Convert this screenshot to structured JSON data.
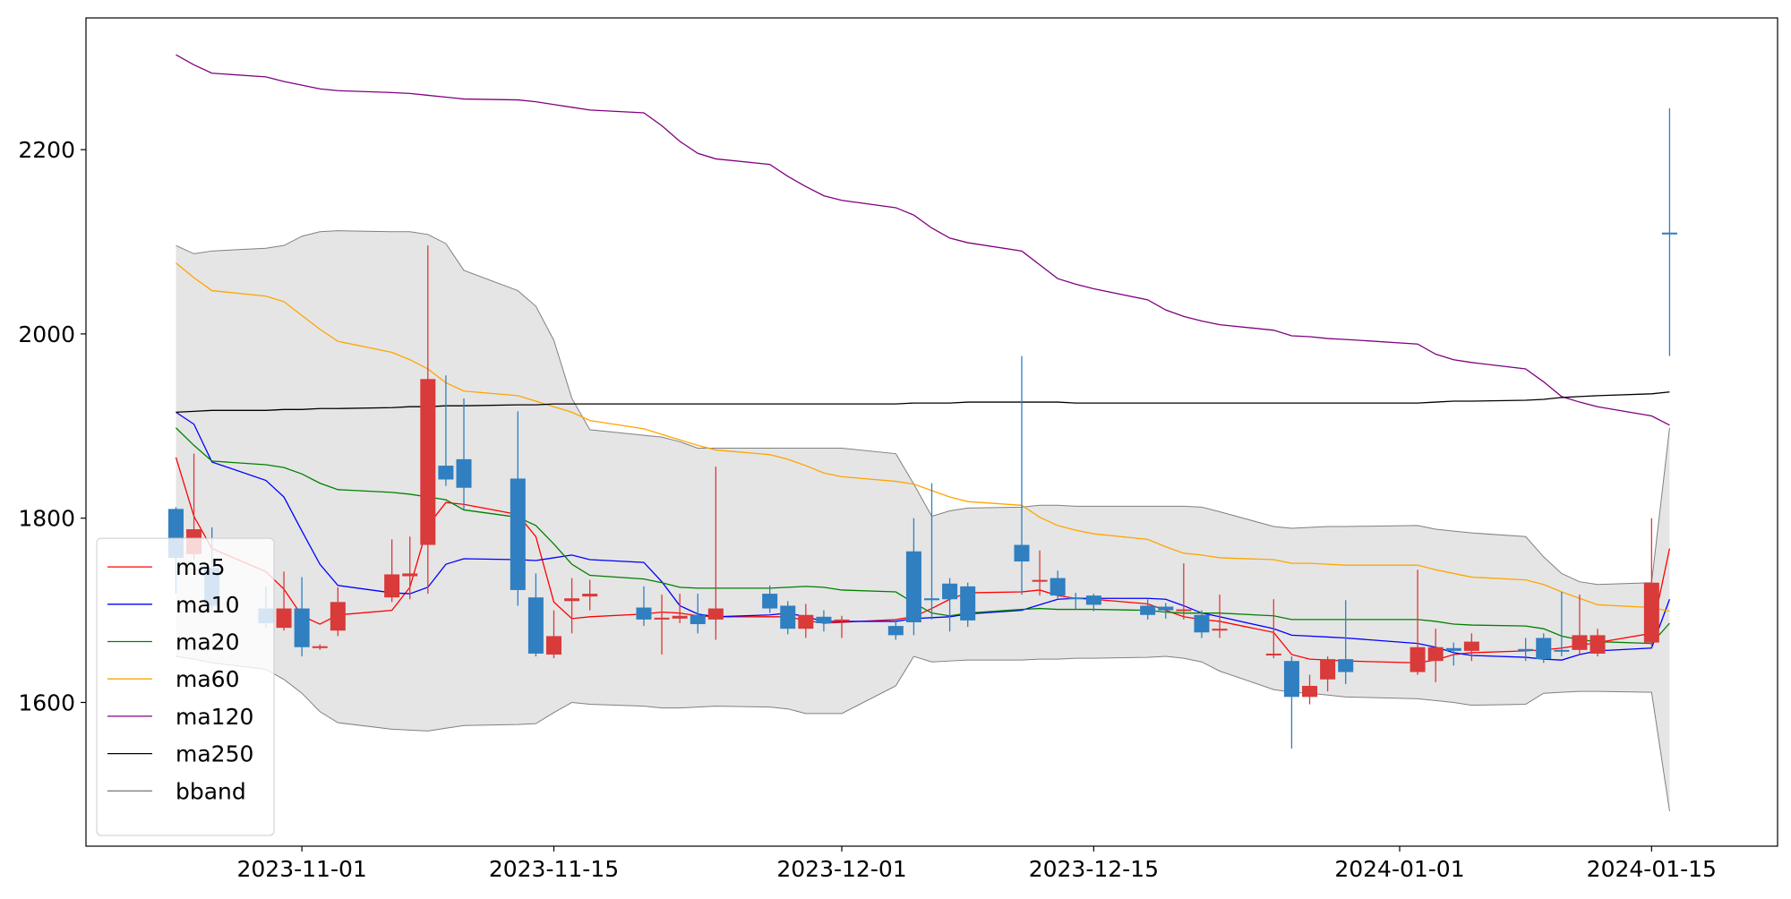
{
  "chart_data": {
    "type": "candlestick",
    "x": [
      "2023-10-25",
      "2023-10-26",
      "2023-10-27",
      "2023-10-30",
      "2023-10-31",
      "2023-11-01",
      "2023-11-02",
      "2023-11-03",
      "2023-11-06",
      "2023-11-07",
      "2023-11-08",
      "2023-11-09",
      "2023-11-10",
      "2023-11-13",
      "2023-11-14",
      "2023-11-15",
      "2023-11-16",
      "2023-11-17",
      "2023-11-20",
      "2023-11-21",
      "2023-11-22",
      "2023-11-23",
      "2023-11-24",
      "2023-11-27",
      "2023-11-28",
      "2023-11-29",
      "2023-11-30",
      "2023-12-01",
      "2023-12-04",
      "2023-12-05",
      "2023-12-06",
      "2023-12-07",
      "2023-12-08",
      "2023-12-11",
      "2023-12-12",
      "2023-12-13",
      "2023-12-14",
      "2023-12-15",
      "2023-12-18",
      "2023-12-19",
      "2023-12-20",
      "2023-12-21",
      "2023-12-22",
      "2023-12-25",
      "2023-12-26",
      "2023-12-27",
      "2023-12-28",
      "2023-12-29",
      "2024-01-02",
      "2024-01-03",
      "2024-01-04",
      "2024-01-05",
      "2024-01-08",
      "2024-01-09",
      "2024-01-10",
      "2024-01-11",
      "2024-01-12",
      "2024-01-15",
      "2024-01-16"
    ],
    "open": [
      1810,
      1761,
      1746,
      1702,
      1681,
      1702,
      1659,
      1678,
      1714,
      1737,
      1771,
      1857,
      1864,
      1843,
      1714,
      1652,
      1710,
      1715,
      1703,
      1690,
      1691,
      1695,
      1690,
      1718,
      1705,
      1680,
      1693,
      1688,
      1683,
      1764,
      1713,
      1729,
      1726,
      1771,
      1731,
      1735,
      1714,
      1716,
      1705,
      1704,
      1700,
      1695,
      1678,
      1651,
      1645,
      1606,
      1625,
      1647,
      1633,
      1645,
      1659,
      1656,
      1658,
      1670,
      1657,
      1657,
      1653,
      1665,
      2110
    ],
    "high": [
      1812,
      1870,
      1790,
      1726,
      1742,
      1736,
      1663,
      1725,
      1777,
      1780,
      2096,
      1955,
      1930,
      1916,
      1740,
      1700,
      1735,
      1733,
      1726,
      1717,
      1718,
      1718,
      1856,
      1727,
      1710,
      1707,
      1700,
      1694,
      1690,
      1800,
      1838,
      1735,
      1730,
      1976,
      1765,
      1743,
      1719,
      1718,
      1712,
      1708,
      1751,
      1700,
      1717,
      1712,
      1650,
      1630,
      1650,
      1711,
      1744,
      1680,
      1665,
      1675,
      1670,
      1675,
      1720,
      1717,
      1680,
      1800,
      2245
    ],
    "low": [
      1718,
      1755,
      1700,
      1681,
      1678,
      1650,
      1657,
      1672,
      1709,
      1712,
      1718,
      1835,
      1810,
      1705,
      1650,
      1648,
      1675,
      1700,
      1683,
      1652,
      1686,
      1675,
      1668,
      1697,
      1674,
      1670,
      1677,
      1670,
      1668,
      1673,
      1690,
      1677,
      1682,
      1717,
      1716,
      1712,
      1701,
      1699,
      1690,
      1691,
      1690,
      1670,
      1670,
      1648,
      1550,
      1598,
      1612,
      1620,
      1630,
      1622,
      1640,
      1645,
      1645,
      1643,
      1650,
      1652,
      1650,
      1660,
      1976
    ],
    "close": [
      1757,
      1788,
      1705,
      1686,
      1702,
      1660,
      1661,
      1709,
      1739,
      1740,
      1951,
      1842,
      1833,
      1722,
      1653,
      1672,
      1713,
      1718,
      1690,
      1692,
      1694,
      1685,
      1702,
      1702,
      1680,
      1695,
      1686,
      1690,
      1673,
      1687,
      1711,
      1712,
      1689,
      1753,
      1733,
      1716,
      1712,
      1706,
      1695,
      1700,
      1701,
      1676,
      1680,
      1653,
      1606,
      1618,
      1647,
      1633,
      1660,
      1660,
      1656,
      1666,
      1656,
      1647,
      1656,
      1673,
      1673,
      1730,
      2108
    ],
    "up_color": "#d93a3a",
    "down_color": "#2f7fc1",
    "series": [
      {
        "name": "ma5",
        "color": "#ff0000",
        "values": [
          1866,
          1802,
          1767,
          1742,
          1723,
          1694,
          1685,
          1695,
          1700,
          1725,
          1792,
          1817,
          1815,
          1804,
          1780,
          1709,
          1691,
          1693,
          1696,
          1698,
          1697,
          1694,
          1693,
          1693,
          1693,
          1689,
          1686,
          1687,
          1690,
          1693,
          1702,
          1712,
          1719,
          1720,
          1722,
          1716,
          1713,
          1712,
          1707,
          1700,
          1693,
          1690,
          1688,
          1676,
          1652,
          1647,
          1646,
          1645,
          1643,
          1646,
          1652,
          1654,
          1656,
          1657,
          1659,
          1662,
          1665,
          1675,
          1767
        ]
      },
      {
        "name": "ma10",
        "color": "#0000ff",
        "values": [
          1915,
          1902,
          1861,
          1841,
          1823,
          1786,
          1750,
          1727,
          1719,
          1718,
          1725,
          1750,
          1756,
          1755,
          1754,
          1757,
          1760,
          1755,
          1752,
          1731,
          1705,
          1696,
          1693,
          1695,
          1697,
          1693,
          1688,
          1688,
          1688,
          1691,
          1692,
          1693,
          1696,
          1700,
          1706,
          1712,
          1713,
          1713,
          1713,
          1712,
          1705,
          1697,
          1693,
          1680,
          1673,
          1672,
          1671,
          1670,
          1664,
          1660,
          1654,
          1651,
          1649,
          1647,
          1646,
          1652,
          1656,
          1659,
          1712
        ]
      },
      {
        "name": "ma20",
        "color": "#008000",
        "values": [
          1898,
          1879,
          1862,
          1858,
          1855,
          1848,
          1838,
          1831,
          1828,
          1826,
          1823,
          1820,
          1809,
          1801,
          1792,
          1772,
          1750,
          1738,
          1734,
          1730,
          1725,
          1724,
          1724,
          1724,
          1725,
          1726,
          1725,
          1722,
          1720,
          1708,
          1697,
          1694,
          1697,
          1701,
          1702,
          1701,
          1701,
          1701,
          1700,
          1698,
          1697,
          1697,
          1697,
          1694,
          1690,
          1690,
          1690,
          1690,
          1690,
          1688,
          1685,
          1684,
          1683,
          1680,
          1672,
          1668,
          1666,
          1664,
          1686
        ]
      },
      {
        "name": "ma60",
        "color": "#ffa500",
        "values": [
          2077,
          2061,
          2047,
          2041,
          2035,
          2020,
          2005,
          1992,
          1980,
          1972,
          1962,
          1947,
          1938,
          1933,
          1927,
          1921,
          1915,
          1906,
          1897,
          1891,
          1885,
          1879,
          1874,
          1869,
          1864,
          1857,
          1849,
          1845,
          1840,
          1837,
          1830,
          1823,
          1818,
          1814,
          1801,
          1792,
          1787,
          1783,
          1777,
          1769,
          1762,
          1760,
          1757,
          1755,
          1751,
          1751,
          1750,
          1749,
          1749,
          1744,
          1740,
          1736,
          1733,
          1728,
          1720,
          1713,
          1706,
          1703,
          1699
        ]
      },
      {
        "name": "ma120",
        "color": "#800080",
        "values": [
          2303,
          2292,
          2283,
          2279,
          2274,
          2270,
          2266,
          2264,
          2262,
          2261,
          2259,
          2257,
          2255,
          2254,
          2252,
          2249,
          2246,
          2243,
          2240,
          2226,
          2209,
          2196,
          2190,
          2184,
          2171,
          2160,
          2150,
          2145,
          2137,
          2129,
          2115,
          2104,
          2099,
          2090,
          2075,
          2060,
          2054,
          2049,
          2037,
          2026,
          2019,
          2014,
          2010,
          2004,
          1998,
          1997,
          1995,
          1994,
          1989,
          1978,
          1972,
          1969,
          1962,
          1948,
          1932,
          1926,
          1921,
          1911,
          1901
        ]
      },
      {
        "name": "ma250",
        "color": "#000000",
        "values": [
          1915,
          1916,
          1917,
          1917,
          1918,
          1918,
          1919,
          1919,
          1920,
          1921,
          1921,
          1922,
          1922,
          1923,
          1923,
          1924,
          1924,
          1924,
          1924,
          1924,
          1924,
          1924,
          1924,
          1924,
          1924,
          1924,
          1924,
          1924,
          1924,
          1925,
          1925,
          1925,
          1926,
          1926,
          1926,
          1926,
          1925,
          1925,
          1925,
          1925,
          1925,
          1925,
          1925,
          1925,
          1925,
          1925,
          1925,
          1925,
          1925,
          1926,
          1927,
          1927,
          1928,
          1929,
          1931,
          1932,
          1933,
          1935,
          1937
        ]
      }
    ],
    "band": {
      "name": "bband",
      "color": "#808080",
      "fill": "#e5e5e5",
      "upper": [
        2096,
        2087,
        2090,
        2093,
        2096,
        2106,
        2111,
        2112,
        2111,
        2111,
        2108,
        2098,
        2069,
        2047,
        2030,
        1993,
        1930,
        1896,
        1890,
        1888,
        1883,
        1876,
        1876,
        1876,
        1876,
        1876,
        1876,
        1876,
        1870,
        1837,
        1802,
        1808,
        1811,
        1812,
        1814,
        1814,
        1813,
        1813,
        1813,
        1813,
        1813,
        1812,
        1807,
        1791,
        1789,
        1790,
        1791,
        1791,
        1792,
        1788,
        1786,
        1784,
        1780,
        1758,
        1740,
        1731,
        1728,
        1730,
        1898
      ],
      "lower": [
        1650,
        1647,
        1643,
        1636,
        1625,
        1610,
        1590,
        1578,
        1571,
        1570,
        1569,
        1572,
        1575,
        1576,
        1577,
        1589,
        1600,
        1598,
        1596,
        1594,
        1594,
        1595,
        1596,
        1595,
        1593,
        1588,
        1588,
        1588,
        1618,
        1650,
        1644,
        1645,
        1646,
        1646,
        1647,
        1647,
        1648,
        1648,
        1649,
        1650,
        1648,
        1644,
        1634,
        1614,
        1611,
        1610,
        1608,
        1606,
        1604,
        1602,
        1600,
        1597,
        1598,
        1610,
        1611,
        1612,
        1612,
        1611,
        1482
      ]
    },
    "xlim": [
      "2023-10-20",
      "2024-01-22"
    ],
    "xticks": [
      "2023-11-01",
      "2023-11-15",
      "2023-12-01",
      "2023-12-15",
      "2024-01-01",
      "2024-01-15"
    ],
    "ylim": [
      1444,
      2343
    ],
    "yticks": [
      1600,
      1800,
      2000,
      2200
    ],
    "legend": "lower left"
  }
}
